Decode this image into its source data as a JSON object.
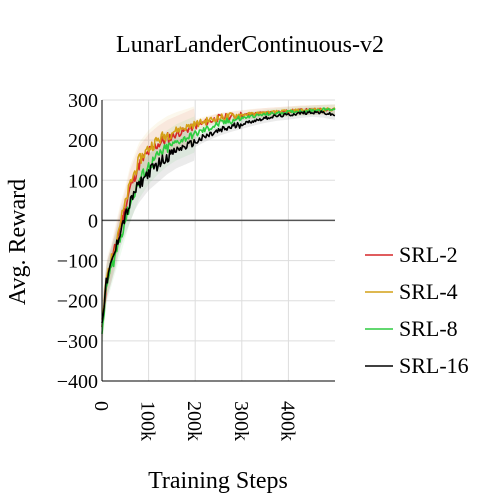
{
  "chart_data": {
    "type": "line",
    "title": "LunarLanderContinuous-v2",
    "xlabel": "Training Steps",
    "ylabel": "Avg. Reward",
    "xlim": [
      0,
      500000
    ],
    "ylim": [
      -400,
      300
    ],
    "x_ticks": [
      0,
      100000,
      200000,
      300000,
      400000
    ],
    "x_tick_labels": [
      "0",
      "100k",
      "200k",
      "300k",
      "400k"
    ],
    "y_ticks": [
      -400,
      -300,
      -200,
      -100,
      0,
      100,
      200,
      300
    ],
    "y_tick_labels": [
      "−400",
      "−300",
      "−200",
      "−100",
      "0",
      "100",
      "200",
      "300"
    ],
    "grid": true,
    "legend_position": "right",
    "series": [
      {
        "name": "SRL-2",
        "color": "#d62728",
        "x": [
          0,
          10000,
          20000,
          30000,
          40000,
          50000,
          60000,
          70000,
          80000,
          100000,
          120000,
          140000,
          160000,
          180000,
          200000,
          225000,
          250000,
          275000,
          300000,
          325000,
          350000,
          375000,
          400000,
          425000,
          450000,
          475000,
          500000
        ],
        "y": [
          -270,
          -150,
          -110,
          -60,
          -10,
          30,
          80,
          110,
          140,
          170,
          190,
          205,
          215,
          225,
          235,
          245,
          255,
          258,
          262,
          265,
          268,
          270,
          272,
          274,
          275,
          276,
          277
        ]
      },
      {
        "name": "SRL-4",
        "color": "#d4a017",
        "x": [
          0,
          10000,
          20000,
          30000,
          40000,
          50000,
          60000,
          70000,
          80000,
          100000,
          120000,
          140000,
          160000,
          180000,
          200000,
          225000,
          250000,
          275000,
          300000,
          325000,
          350000,
          375000,
          400000,
          425000,
          450000,
          475000,
          500000
        ],
        "y": [
          -260,
          -140,
          -100,
          -50,
          0,
          40,
          90,
          120,
          150,
          180,
          200,
          215,
          225,
          232,
          240,
          248,
          255,
          260,
          263,
          266,
          268,
          270,
          272,
          274,
          275,
          276,
          277
        ]
      },
      {
        "name": "SRL-8",
        "color": "#2ecc40",
        "x": [
          0,
          10000,
          20000,
          30000,
          40000,
          50000,
          60000,
          70000,
          80000,
          100000,
          120000,
          140000,
          160000,
          180000,
          200000,
          225000,
          250000,
          275000,
          300000,
          325000,
          350000,
          375000,
          400000,
          425000,
          450000,
          475000,
          500000
        ],
        "y": [
          -280,
          -160,
          -120,
          -80,
          -40,
          0,
          40,
          70,
          100,
          135,
          160,
          180,
          195,
          205,
          215,
          228,
          240,
          248,
          255,
          260,
          264,
          267,
          270,
          272,
          274,
          276,
          277
        ]
      },
      {
        "name": "SRL-16",
        "color": "#000000",
        "x": [
          0,
          10000,
          20000,
          30000,
          40000,
          50000,
          60000,
          70000,
          80000,
          100000,
          120000,
          140000,
          160000,
          180000,
          200000,
          225000,
          250000,
          275000,
          300000,
          325000,
          350000,
          375000,
          400000,
          425000,
          450000,
          475000,
          500000
        ],
        "y": [
          -250,
          -150,
          -110,
          -70,
          -20,
          10,
          40,
          70,
          90,
          120,
          140,
          160,
          175,
          185,
          195,
          210,
          222,
          232,
          240,
          248,
          255,
          260,
          263,
          267,
          270,
          268,
          262
        ]
      }
    ]
  }
}
